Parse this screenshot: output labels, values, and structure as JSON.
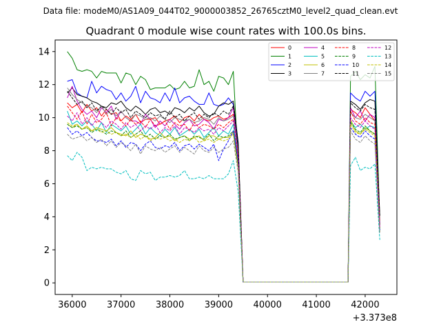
{
  "figure": {
    "suptitle": "Data file: modeM0/AS1A09_044T02_9000003852_26765cztM0_level2_quad_clean.evt"
  },
  "chart_data": {
    "type": "line",
    "title": "Quadrant 0 module wise count rates with 100.0s bins.",
    "xlabel": "",
    "ylabel": "",
    "x_offset_label": "+3.373e8",
    "xlim": [
      35650,
      42650
    ],
    "ylim": [
      -0.7,
      14.7
    ],
    "xticks": [
      36000,
      37000,
      38000,
      39000,
      40000,
      41000,
      42000
    ],
    "xtick_labels": [
      "36000",
      "37000",
      "38000",
      "39000",
      "40000",
      "41000",
      "42000"
    ],
    "yticks": [
      0,
      2,
      4,
      6,
      8,
      10,
      12,
      14
    ],
    "ytick_labels": [
      "0",
      "2",
      "4",
      "6",
      "8",
      "10",
      "12",
      "14"
    ],
    "grid": false,
    "legend_position": "top-right",
    "legend_columns": 4,
    "gap": [
      39550,
      41650
    ],
    "x": [
      35900,
      36000,
      36100,
      36200,
      36300,
      36400,
      36500,
      36600,
      36700,
      36800,
      36900,
      37000,
      37100,
      37200,
      37300,
      37400,
      37500,
      37600,
      37700,
      37800,
      37900,
      38000,
      38100,
      38200,
      38300,
      38400,
      38500,
      38600,
      38700,
      38800,
      38900,
      39000,
      39100,
      39200,
      39300,
      39400,
      39500,
      39550,
      41650,
      41700,
      41800,
      41900,
      42000,
      42100,
      42200,
      42300
    ],
    "series": [
      {
        "name": "0",
        "color": "#ff0000",
        "dash": "solid",
        "values": [
          10.9,
          10.6,
          10.8,
          10.3,
          10.8,
          10.4,
          10.6,
          10.1,
          10.5,
          10.2,
          10.3,
          9.8,
          10.1,
          9.9,
          10.2,
          9.7,
          9.9,
          9.9,
          10.0,
          9.6,
          9.8,
          9.9,
          10.1,
          9.7,
          10.0,
          10.1,
          9.8,
          10.2,
          9.9,
          9.8,
          10.0,
          10.1,
          9.9,
          10.0,
          10.2,
          8.0,
          0.05,
          0.05,
          0.05,
          10.5,
          10.3,
          10.0,
          10.6,
          10.2,
          9.8,
          3.9
        ]
      },
      {
        "name": "1",
        "color": "#008000",
        "dash": "solid",
        "values": [
          14.0,
          13.6,
          12.9,
          12.8,
          12.9,
          12.8,
          12.4,
          12.8,
          12.7,
          12.7,
          12.7,
          12.1,
          12.7,
          12.6,
          12.0,
          12.5,
          12.3,
          11.7,
          11.8,
          11.8,
          11.8,
          12.0,
          11.7,
          11.8,
          12.2,
          11.8,
          11.9,
          12.9,
          12.0,
          12.2,
          11.6,
          12.5,
          12.4,
          12.0,
          12.8,
          7.2,
          0.05,
          0.05,
          0.05,
          12.5,
          12.8,
          12.3,
          12.6,
          12.4,
          13.1,
          3.6
        ]
      },
      {
        "name": "2",
        "color": "#0000ff",
        "dash": "solid",
        "values": [
          12.2,
          12.3,
          11.5,
          11.3,
          11.2,
          12.2,
          11.5,
          11.9,
          11.7,
          11.6,
          11.1,
          11.5,
          11.0,
          11.3,
          11.9,
          10.9,
          11.6,
          11.2,
          11.1,
          10.9,
          11.5,
          11.0,
          11.8,
          10.9,
          11.2,
          11.3,
          11.0,
          10.8,
          10.8,
          11.5,
          10.8,
          10.7,
          10.8,
          11.2,
          10.8,
          8.2,
          0.05,
          0.05,
          0.05,
          11.5,
          11.2,
          11.0,
          11.6,
          11.3,
          11.6,
          3.5
        ]
      },
      {
        "name": "3",
        "color": "#000000",
        "dash": "solid",
        "values": [
          11.5,
          11.8,
          11.4,
          11.3,
          11.2,
          11.0,
          10.9,
          10.7,
          10.6,
          10.9,
          10.8,
          11.0,
          10.6,
          10.4,
          10.7,
          10.5,
          10.2,
          10.5,
          10.6,
          10.3,
          10.4,
          10.2,
          10.6,
          10.5,
          10.3,
          10.6,
          10.4,
          10.7,
          10.3,
          10.1,
          10.2,
          10.7,
          10.9,
          10.8,
          11.0,
          8.5,
          0.05,
          0.05,
          0.05,
          11.0,
          10.8,
          10.5,
          10.9,
          11.1,
          11.0,
          4.1
        ]
      },
      {
        "name": "4",
        "color": "#bf00bf",
        "dash": "solid",
        "values": [
          11.2,
          11.9,
          11.0,
          10.5,
          10.2,
          10.4,
          10.0,
          10.6,
          10.3,
          10.7,
          9.9,
          10.4,
          10.0,
          9.8,
          9.8,
          9.6,
          10.2,
          9.9,
          9.4,
          9.8,
          9.5,
          9.9,
          9.6,
          9.3,
          9.7,
          9.9,
          9.5,
          9.6,
          9.9,
          9.7,
          9.3,
          9.9,
          9.8,
          10.0,
          10.6,
          7.6,
          0.05,
          0.05,
          0.05,
          10.6,
          10.0,
          10.4,
          9.8,
          10.2,
          10.0,
          3.3
        ]
      },
      {
        "name": "5",
        "color": "#00bfbf",
        "dash": "solid",
        "values": [
          10.4,
          9.6,
          9.8,
          9.5,
          9.8,
          9.6,
          9.2,
          9.7,
          9.1,
          9.6,
          9.4,
          9.2,
          9.5,
          9.0,
          9.3,
          9.6,
          9.0,
          9.4,
          9.1,
          8.9,
          9.3,
          9.0,
          9.4,
          8.9,
          9.1,
          9.3,
          9.0,
          9.3,
          8.8,
          9.1,
          9.4,
          8.9,
          9.2,
          9.0,
          9.6,
          7.3,
          0.05,
          0.05,
          0.05,
          9.8,
          9.4,
          9.6,
          9.3,
          9.5,
          9.4,
          3.2
        ]
      },
      {
        "name": "6",
        "color": "#bfbf00",
        "dash": "solid",
        "values": [
          9.6,
          9.4,
          9.6,
          9.3,
          9.5,
          9.2,
          9.4,
          9.3,
          9.2,
          9.4,
          9.1,
          9.0,
          8.9,
          9.2,
          8.8,
          9.0,
          8.9,
          8.7,
          8.8,
          9.1,
          8.8,
          8.9,
          8.6,
          8.8,
          8.9,
          8.7,
          8.8,
          8.9,
          8.6,
          8.9,
          8.9,
          8.7,
          8.8,
          8.8,
          9.1,
          7.0,
          0.05,
          0.05,
          0.05,
          9.9,
          9.2,
          9.0,
          9.4,
          9.2,
          9.0,
          3.1
        ]
      },
      {
        "name": "7",
        "color": "#808080",
        "dash": "solid",
        "values": [
          11.8,
          11.4,
          11.1,
          10.9,
          10.7,
          10.6,
          10.3,
          10.7,
          10.2,
          10.5,
          10.1,
          10.4,
          10.0,
          9.8,
          10.2,
          10.1,
          9.9,
          10.0,
          9.8,
          10.1,
          9.9,
          9.7,
          10.0,
          9.9,
          9.8,
          9.9,
          9.7,
          9.8,
          10.0,
          9.9,
          9.6,
          10.0,
          9.8,
          9.9,
          10.1,
          7.8,
          0.05,
          0.05,
          0.05,
          10.3,
          10.0,
          9.9,
          10.2,
          10.0,
          9.8,
          3.8
        ]
      },
      {
        "name": "8",
        "color": "#ff0000",
        "dash": "dashed",
        "values": [
          10.7,
          10.3,
          9.9,
          10.4,
          9.6,
          10.2,
          9.7,
          9.9,
          10.3,
          9.5,
          10.0,
          9.8,
          9.5,
          9.9,
          9.6,
          9.8,
          9.4,
          9.9,
          9.5,
          9.6,
          9.8,
          9.3,
          9.7,
          9.5,
          9.6,
          9.2,
          9.7,
          9.4,
          9.6,
          9.5,
          9.3,
          9.6,
          9.4,
          9.7,
          9.9,
          7.7,
          0.05,
          0.05,
          0.05,
          10.4,
          9.8,
          9.6,
          10.0,
          9.7,
          9.6,
          3.5
        ]
      },
      {
        "name": "9",
        "color": "#008000",
        "dash": "dashed",
        "values": [
          9.6,
          9.4,
          9.5,
          9.3,
          9.4,
          9.1,
          9.3,
          9.2,
          9.0,
          9.2,
          9.1,
          8.9,
          9.2,
          8.8,
          9.0,
          9.2,
          8.8,
          9.0,
          8.7,
          8.9,
          8.8,
          9.0,
          8.7,
          8.8,
          8.9,
          8.6,
          8.9,
          8.8,
          8.7,
          9.0,
          8.6,
          8.9,
          8.8,
          8.9,
          9.2,
          7.1,
          0.05,
          0.05,
          0.05,
          9.7,
          9.3,
          9.1,
          9.5,
          9.2,
          9.0,
          3.3
        ]
      },
      {
        "name": "10",
        "color": "#0000ff",
        "dash": "dashed",
        "values": [
          9.4,
          9.0,
          9.2,
          8.9,
          9.1,
          8.8,
          8.6,
          8.6,
          8.5,
          8.7,
          8.3,
          8.6,
          8.2,
          8.5,
          8.4,
          8.0,
          8.4,
          8.6,
          8.2,
          8.1,
          8.3,
          8.2,
          8.5,
          8.0,
          8.3,
          8.4,
          8.1,
          8.4,
          8.2,
          8.0,
          8.4,
          7.4,
          8.1,
          8.6,
          9.2,
          7.4,
          0.05,
          0.05,
          0.05,
          9.4,
          9.0,
          8.8,
          9.2,
          8.9,
          8.7,
          3.2
        ]
      },
      {
        "name": "11",
        "color": "#000000",
        "dash": "dashed",
        "values": [
          11.6,
          11.2,
          10.8,
          11.0,
          10.6,
          10.9,
          10.4,
          10.7,
          10.5,
          10.2,
          10.6,
          10.3,
          10.5,
          10.0,
          10.4,
          10.2,
          10.0,
          10.3,
          10.1,
          10.2,
          9.9,
          10.4,
          10.0,
          10.2,
          9.8,
          10.1,
          10.3,
          9.9,
          10.2,
          10.0,
          10.3,
          10.1,
          10.4,
          10.2,
          10.7,
          8.3,
          0.05,
          0.05,
          0.05,
          10.9,
          10.6,
          10.4,
          10.8,
          10.6,
          10.5,
          4.0
        ]
      },
      {
        "name": "12",
        "color": "#bf00bf",
        "dash": "dashed",
        "values": [
          10.1,
          9.8,
          10.3,
          9.6,
          10.0,
          9.5,
          9.9,
          9.7,
          9.4,
          9.8,
          9.6,
          9.3,
          9.7,
          9.4,
          9.6,
          9.2,
          9.5,
          9.3,
          9.6,
          9.1,
          9.4,
          9.2,
          9.5,
          9.0,
          9.4,
          9.3,
          9.1,
          9.4,
          9.2,
          9.3,
          9.0,
          9.4,
          9.2,
          9.5,
          9.8,
          7.5,
          0.05,
          0.05,
          0.05,
          10.0,
          9.6,
          9.4,
          9.8,
          9.5,
          9.3,
          3.4
        ]
      },
      {
        "name": "13",
        "color": "#00bfbf",
        "dash": "dashed",
        "values": [
          7.7,
          7.4,
          7.9,
          7.6,
          6.8,
          7.0,
          6.9,
          7.0,
          6.9,
          6.9,
          6.7,
          6.6,
          6.8,
          6.3,
          6.2,
          6.8,
          6.6,
          6.7,
          6.2,
          6.4,
          6.4,
          6.5,
          6.4,
          6.5,
          6.8,
          6.3,
          6.3,
          6.4,
          6.3,
          6.5,
          6.3,
          6.3,
          6.3,
          6.6,
          7.4,
          5.5,
          0.05,
          0.05,
          0.05,
          7.1,
          7.6,
          6.8,
          7.0,
          6.9,
          7.2,
          2.6
        ]
      },
      {
        "name": "14",
        "color": "#bfbf00",
        "dash": "dashed",
        "values": [
          9.7,
          9.5,
          9.6,
          9.3,
          9.4,
          9.2,
          9.3,
          9.1,
          9.2,
          9.0,
          9.1,
          8.9,
          9.0,
          8.8,
          9.0,
          8.7,
          8.9,
          8.6,
          8.8,
          8.7,
          8.8,
          8.6,
          8.7,
          8.5,
          8.7,
          8.6,
          8.8,
          8.5,
          8.6,
          8.7,
          8.5,
          8.7,
          8.6,
          8.7,
          9.0,
          6.9,
          0.05,
          0.05,
          0.05,
          9.6,
          9.1,
          9.0,
          9.3,
          9.1,
          8.9,
          3.1
        ]
      },
      {
        "name": "15",
        "color": "#808080",
        "dash": "dashed",
        "values": [
          9.0,
          8.7,
          8.8,
          8.9,
          8.6,
          8.8,
          8.5,
          8.7,
          8.3,
          8.6,
          8.2,
          8.5,
          8.3,
          8.0,
          8.4,
          7.8,
          8.3,
          8.1,
          8.0,
          8.2,
          7.9,
          8.1,
          8.3,
          7.9,
          8.2,
          8.0,
          7.8,
          8.3,
          8.0,
          7.9,
          8.2,
          7.9,
          8.1,
          8.2,
          8.6,
          6.7,
          0.05,
          0.05,
          0.05,
          9.2,
          8.7,
          8.5,
          8.9,
          8.6,
          8.4,
          3.0
        ]
      }
    ]
  }
}
